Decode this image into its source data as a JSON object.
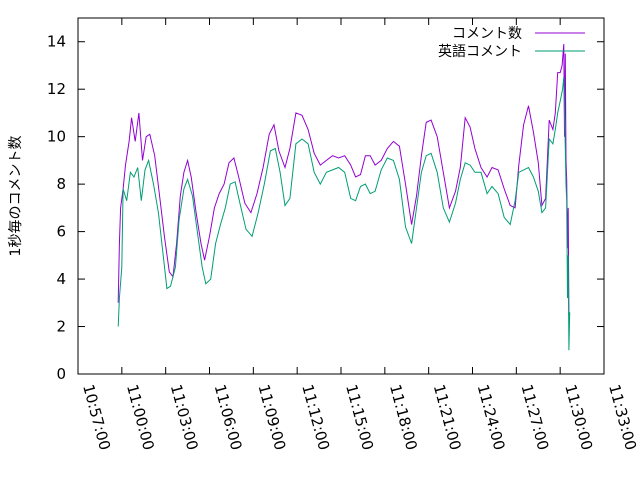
{
  "chart_data": {
    "type": "line",
    "ylabel": "1秒毎のコメント数",
    "xlabel": "",
    "title": "",
    "ylim": [
      0,
      15
    ],
    "xlim": [
      "10:57:00",
      "11:33:00"
    ],
    "y_ticks": [
      "0",
      "2",
      "4",
      "6",
      "8",
      "10",
      "12",
      "14"
    ],
    "x_ticks": [
      "10:57:00",
      "11:00:00",
      "11:03:00",
      "11:06:00",
      "11:09:00",
      "11:12:00",
      "11:15:00",
      "11:18:00",
      "11:21:00",
      "11:24:00",
      "11:27:00",
      "11:30:00",
      "11:33:00"
    ],
    "grid": false,
    "legend_position": "top-right",
    "series": [
      {
        "name": "コメント数",
        "color": "#9400d3",
        "points": [
          [
            "10:59:45",
            3.0
          ],
          [
            "10:59:50",
            5.5
          ],
          [
            "10:59:55",
            7.0
          ],
          [
            "11:00:05",
            7.8
          ],
          [
            "11:00:15",
            8.8
          ],
          [
            "11:00:30",
            9.8
          ],
          [
            "11:00:40",
            10.8
          ],
          [
            "11:00:55",
            9.8
          ],
          [
            "11:01:10",
            11.0
          ],
          [
            "11:01:25",
            9.0
          ],
          [
            "11:01:40",
            10.0
          ],
          [
            "11:01:55",
            10.1
          ],
          [
            "11:02:15",
            9.2
          ],
          [
            "11:02:35",
            7.5
          ],
          [
            "11:02:55",
            5.8
          ],
          [
            "11:03:15",
            4.3
          ],
          [
            "11:03:30",
            4.1
          ],
          [
            "11:03:45",
            5.5
          ],
          [
            "11:04:00",
            7.5
          ],
          [
            "11:04:15",
            8.5
          ],
          [
            "11:04:30",
            9.0
          ],
          [
            "11:04:45",
            8.3
          ],
          [
            "11:05:05",
            6.8
          ],
          [
            "11:05:25",
            5.5
          ],
          [
            "11:05:40",
            4.8
          ],
          [
            "11:06:00",
            5.8
          ],
          [
            "11:06:20",
            7.0
          ],
          [
            "11:06:40",
            7.6
          ],
          [
            "11:07:00",
            8.0
          ],
          [
            "11:07:20",
            8.9
          ],
          [
            "11:07:40",
            9.1
          ],
          [
            "11:08:00",
            8.3
          ],
          [
            "11:08:25",
            7.2
          ],
          [
            "11:08:50",
            6.8
          ],
          [
            "11:09:15",
            7.6
          ],
          [
            "11:09:40",
            8.7
          ],
          [
            "11:10:05",
            10.1
          ],
          [
            "11:10:25",
            10.5
          ],
          [
            "11:10:45",
            9.4
          ],
          [
            "11:11:10",
            8.7
          ],
          [
            "11:11:30",
            9.5
          ],
          [
            "11:11:55",
            11.0
          ],
          [
            "11:12:20",
            10.9
          ],
          [
            "11:12:45",
            10.3
          ],
          [
            "11:13:10",
            9.3
          ],
          [
            "11:13:35",
            8.8
          ],
          [
            "11:14:00",
            9.0
          ],
          [
            "11:14:25",
            9.2
          ],
          [
            "11:14:50",
            9.1
          ],
          [
            "11:15:15",
            9.2
          ],
          [
            "11:15:40",
            8.8
          ],
          [
            "11:16:00",
            8.3
          ],
          [
            "11:16:20",
            8.4
          ],
          [
            "11:16:40",
            9.2
          ],
          [
            "11:17:00",
            9.2
          ],
          [
            "11:17:20",
            8.8
          ],
          [
            "11:17:45",
            9.0
          ],
          [
            "11:18:10",
            9.5
          ],
          [
            "11:18:35",
            9.8
          ],
          [
            "11:19:00",
            9.6
          ],
          [
            "11:19:25",
            8.0
          ],
          [
            "11:19:50",
            6.3
          ],
          [
            "11:20:10",
            7.5
          ],
          [
            "11:20:30",
            9.2
          ],
          [
            "11:20:50",
            10.6
          ],
          [
            "11:21:10",
            10.7
          ],
          [
            "11:21:35",
            10.0
          ],
          [
            "11:22:00",
            8.5
          ],
          [
            "11:22:25",
            7.0
          ],
          [
            "11:22:50",
            7.7
          ],
          [
            "11:23:10",
            8.7
          ],
          [
            "11:23:30",
            10.8
          ],
          [
            "11:23:50",
            10.4
          ],
          [
            "11:24:10",
            9.5
          ],
          [
            "11:24:35",
            8.7
          ],
          [
            "11:25:00",
            8.3
          ],
          [
            "11:25:20",
            8.7
          ],
          [
            "11:25:45",
            8.6
          ],
          [
            "11:26:10",
            7.8
          ],
          [
            "11:26:35",
            7.1
          ],
          [
            "11:26:55",
            7.0
          ],
          [
            "11:27:10",
            8.8
          ],
          [
            "11:27:30",
            10.5
          ],
          [
            "11:27:50",
            11.3
          ],
          [
            "11:28:10",
            10.2
          ],
          [
            "11:28:30",
            8.9
          ],
          [
            "11:28:45",
            7.1
          ],
          [
            "11:29:00",
            7.4
          ],
          [
            "11:29:15",
            10.7
          ],
          [
            "11:29:30",
            10.3
          ],
          [
            "11:29:40",
            11.0
          ],
          [
            "11:29:50",
            12.7
          ],
          [
            "11:30:00",
            12.7
          ],
          [
            "11:30:08",
            13.0
          ],
          [
            "11:30:15",
            13.9
          ],
          [
            "11:30:18",
            10.0
          ],
          [
            "11:30:21",
            13.5
          ],
          [
            "11:30:24",
            9.0
          ],
          [
            "11:30:27",
            8.2
          ],
          [
            "11:30:30",
            5.3
          ],
          [
            "11:30:33",
            7.0
          ],
          [
            "11:30:36",
            2.5
          ],
          [
            "11:30:39",
            2.5
          ]
        ]
      },
      {
        "name": "英語コメント",
        "color": "#009e73",
        "points": [
          [
            "10:59:45",
            2.0
          ],
          [
            "10:59:50",
            3.2
          ],
          [
            "11:00:00",
            4.5
          ],
          [
            "11:00:05",
            7.8
          ],
          [
            "11:00:20",
            7.3
          ],
          [
            "11:00:35",
            8.5
          ],
          [
            "11:00:50",
            8.3
          ],
          [
            "11:01:05",
            8.7
          ],
          [
            "11:01:20",
            7.3
          ],
          [
            "11:01:35",
            8.6
          ],
          [
            "11:01:50",
            9.0
          ],
          [
            "11:02:10",
            8.0
          ],
          [
            "11:02:30",
            6.8
          ],
          [
            "11:02:50",
            5.0
          ],
          [
            "11:03:05",
            3.6
          ],
          [
            "11:03:20",
            3.7
          ],
          [
            "11:03:40",
            4.5
          ],
          [
            "11:03:55",
            6.5
          ],
          [
            "11:04:15",
            7.8
          ],
          [
            "11:04:30",
            8.2
          ],
          [
            "11:04:50",
            7.5
          ],
          [
            "11:05:10",
            6.0
          ],
          [
            "11:05:30",
            4.5
          ],
          [
            "11:05:45",
            3.8
          ],
          [
            "11:06:05",
            4.0
          ],
          [
            "11:06:25",
            5.5
          ],
          [
            "11:06:45",
            6.3
          ],
          [
            "11:07:05",
            7.0
          ],
          [
            "11:07:25",
            8.0
          ],
          [
            "11:07:45",
            8.1
          ],
          [
            "11:08:05",
            7.2
          ],
          [
            "11:08:30",
            6.1
          ],
          [
            "11:08:55",
            5.8
          ],
          [
            "11:09:20",
            6.8
          ],
          [
            "11:09:45",
            8.0
          ],
          [
            "11:10:10",
            9.4
          ],
          [
            "11:10:30",
            9.5
          ],
          [
            "11:10:50",
            8.5
          ],
          [
            "11:11:10",
            7.1
          ],
          [
            "11:11:30",
            7.4
          ],
          [
            "11:11:55",
            9.7
          ],
          [
            "11:12:20",
            9.9
          ],
          [
            "11:12:45",
            9.7
          ],
          [
            "11:13:10",
            8.5
          ],
          [
            "11:13:35",
            8.0
          ],
          [
            "11:14:00",
            8.5
          ],
          [
            "11:14:25",
            8.6
          ],
          [
            "11:14:50",
            8.7
          ],
          [
            "11:15:15",
            8.5
          ],
          [
            "11:15:40",
            7.4
          ],
          [
            "11:16:00",
            7.3
          ],
          [
            "11:16:20",
            7.9
          ],
          [
            "11:16:40",
            8.0
          ],
          [
            "11:17:00",
            7.6
          ],
          [
            "11:17:20",
            7.7
          ],
          [
            "11:17:45",
            8.6
          ],
          [
            "11:18:10",
            9.1
          ],
          [
            "11:18:35",
            9.0
          ],
          [
            "11:19:00",
            8.2
          ],
          [
            "11:19:25",
            6.2
          ],
          [
            "11:19:50",
            5.5
          ],
          [
            "11:20:10",
            7.0
          ],
          [
            "11:20:30",
            8.5
          ],
          [
            "11:20:50",
            9.2
          ],
          [
            "11:21:10",
            9.3
          ],
          [
            "11:21:35",
            8.5
          ],
          [
            "11:22:00",
            7.0
          ],
          [
            "11:22:25",
            6.4
          ],
          [
            "11:22:50",
            7.2
          ],
          [
            "11:23:10",
            8.2
          ],
          [
            "11:23:30",
            8.9
          ],
          [
            "11:23:50",
            8.8
          ],
          [
            "11:24:10",
            8.5
          ],
          [
            "11:24:35",
            8.5
          ],
          [
            "11:25:00",
            7.6
          ],
          [
            "11:25:20",
            7.9
          ],
          [
            "11:25:45",
            7.6
          ],
          [
            "11:26:10",
            6.6
          ],
          [
            "11:26:35",
            6.3
          ],
          [
            "11:26:55",
            7.3
          ],
          [
            "11:27:10",
            8.5
          ],
          [
            "11:27:30",
            8.6
          ],
          [
            "11:27:50",
            8.7
          ],
          [
            "11:28:10",
            8.3
          ],
          [
            "11:28:30",
            7.7
          ],
          [
            "11:28:45",
            6.8
          ],
          [
            "11:29:00",
            7.0
          ],
          [
            "11:29:15",
            9.9
          ],
          [
            "11:29:30",
            9.7
          ],
          [
            "11:29:40",
            10.3
          ],
          [
            "11:29:50",
            11.0
          ],
          [
            "11:30:00",
            11.5
          ],
          [
            "11:30:10",
            12.0
          ],
          [
            "11:30:15",
            12.5
          ],
          [
            "11:30:18",
            11.0
          ],
          [
            "11:30:21",
            9.5
          ],
          [
            "11:30:24",
            8.0
          ],
          [
            "11:30:27",
            7.3
          ],
          [
            "11:30:30",
            3.2
          ],
          [
            "11:30:33",
            5.0
          ],
          [
            "11:30:36",
            1.0
          ],
          [
            "11:30:39",
            2.6
          ]
        ]
      }
    ]
  }
}
